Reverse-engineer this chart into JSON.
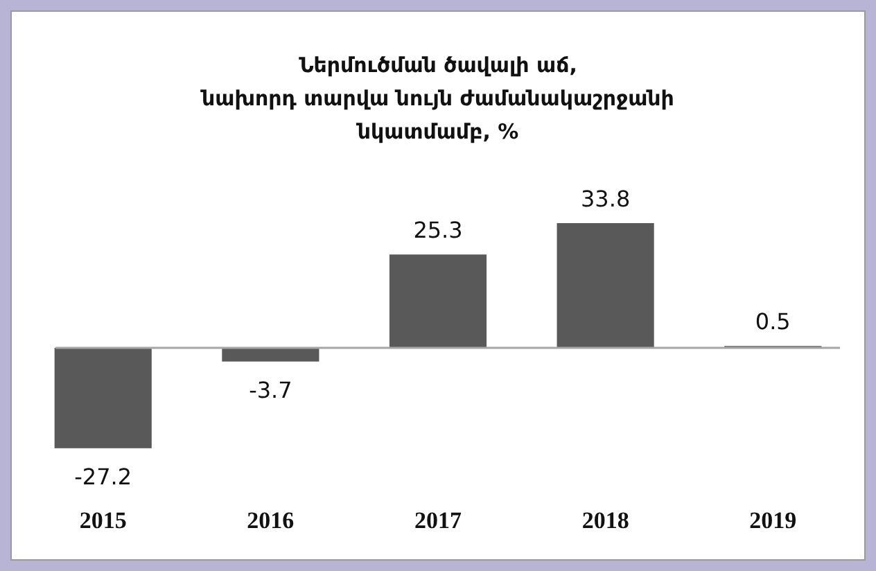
{
  "chart_data": {
    "type": "bar",
    "title": "Ներմուծման ծավալի աճ,\nնախորդ տարվա նույն ժամանակաշրջանի\nնկատմամբ, %",
    "categories": [
      "2015",
      "2016",
      "2017",
      "2018",
      "2019"
    ],
    "values": [
      -27.2,
      -3.7,
      25.3,
      33.8,
      0.5
    ],
    "color": "#595959",
    "data_labels": true
  }
}
